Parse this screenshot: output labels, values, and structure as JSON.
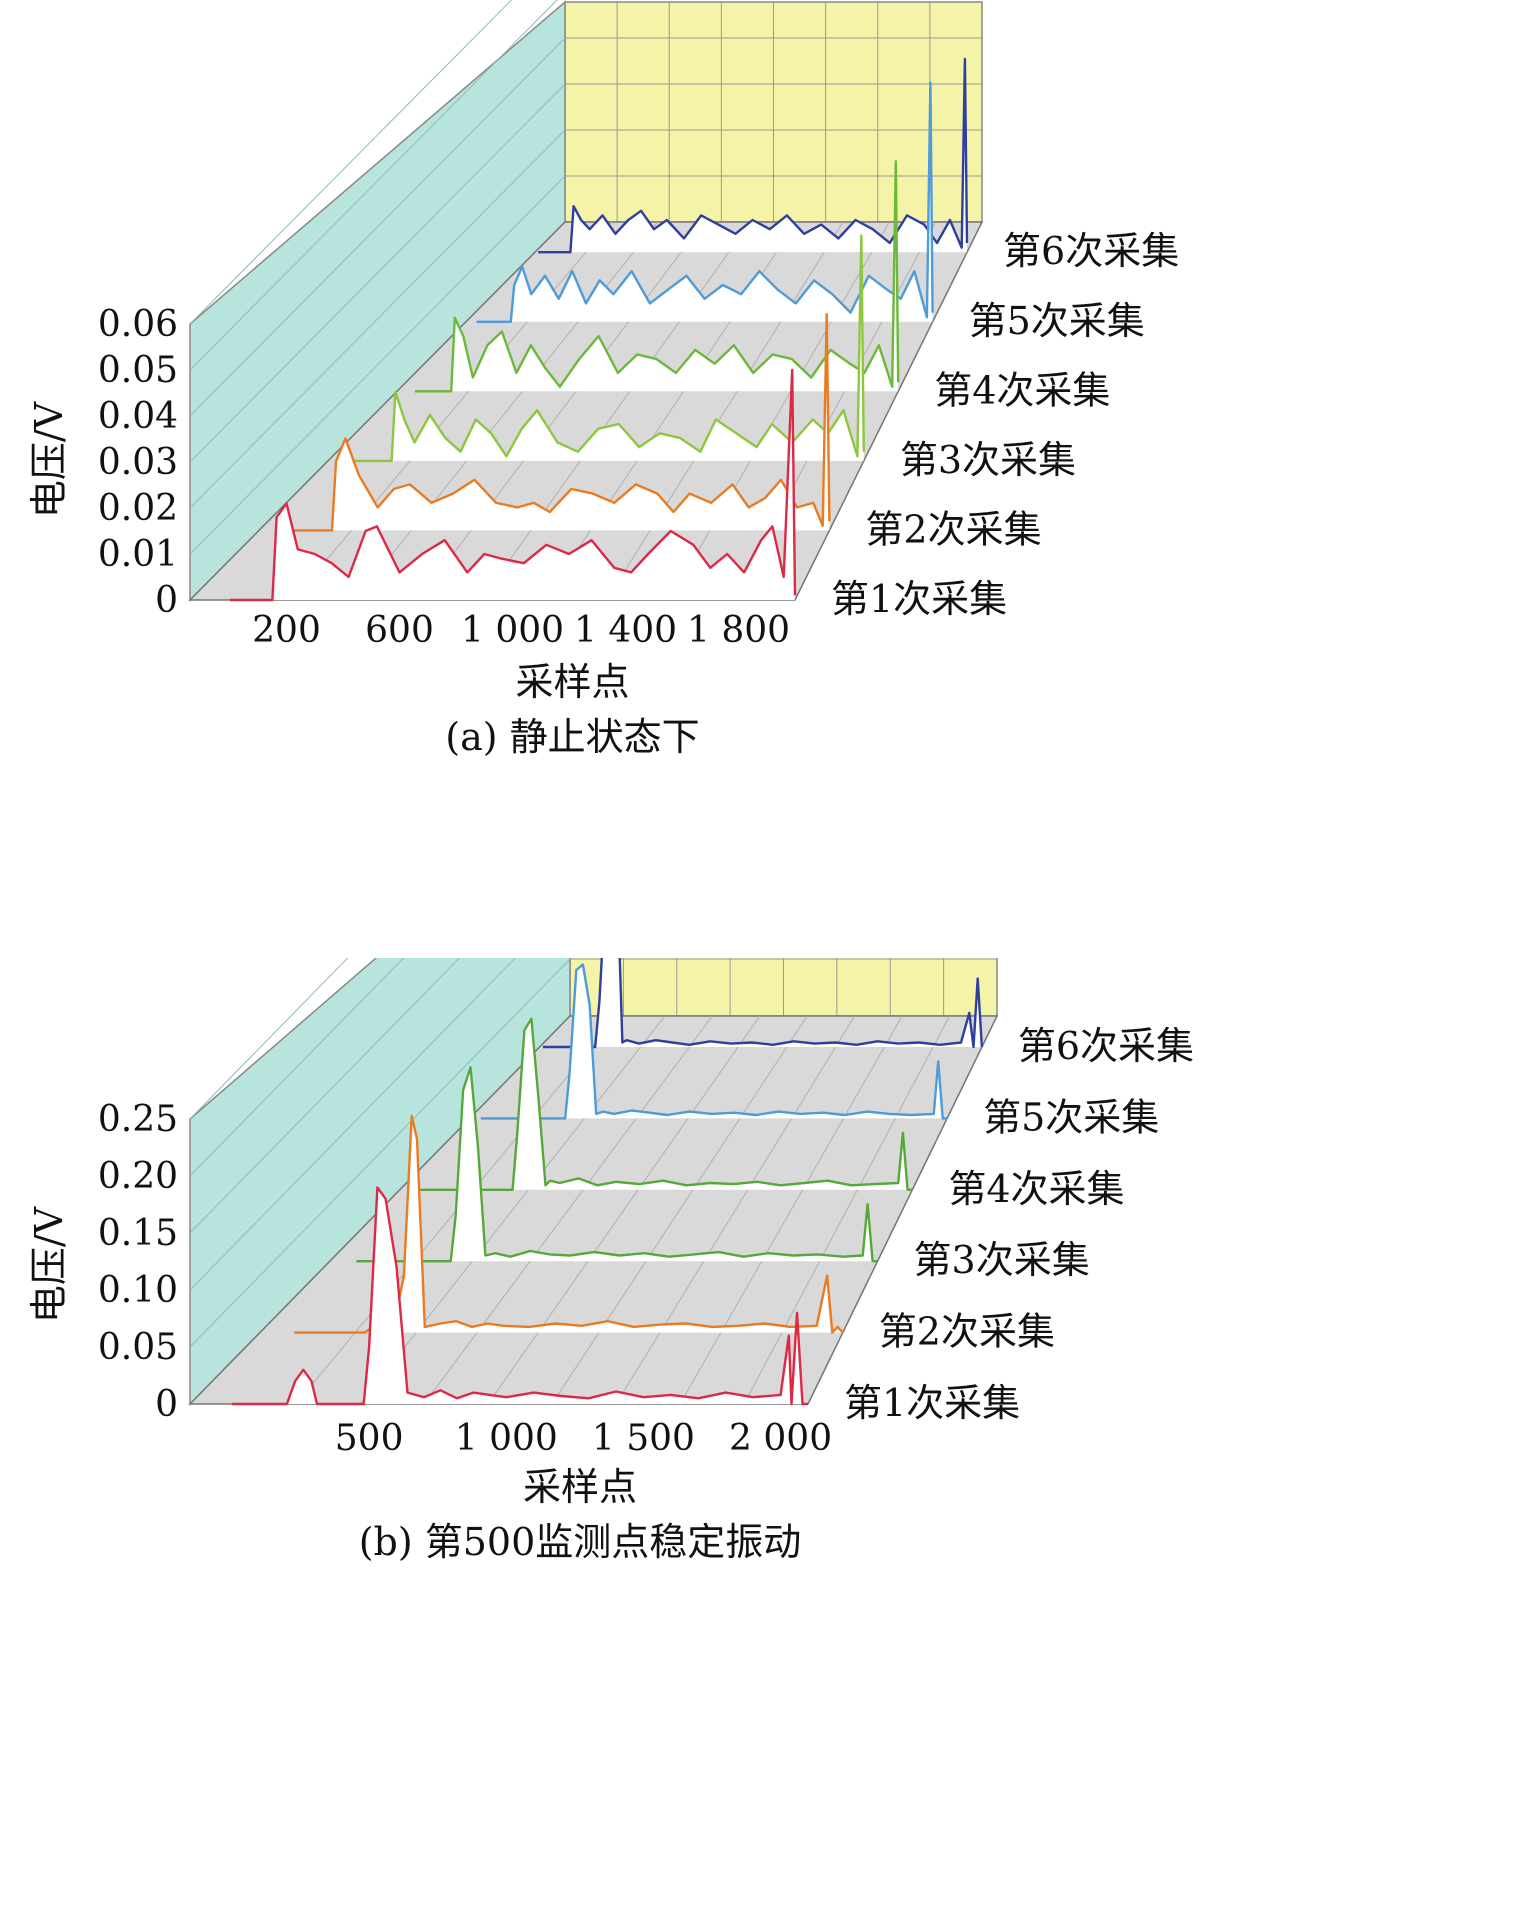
{
  "chart_data": [
    {
      "type": "line",
      "caption": "(a) 静止状态下",
      "ylabel": "电压/V",
      "xlabel": "采样点",
      "ylim": [
        0,
        0.06
      ],
      "yticks": [
        "0",
        "0.01",
        "0.02",
        "0.03",
        "0.04",
        "0.05",
        "0.06"
      ],
      "xlim": [
        0,
        2000
      ],
      "xticks": [
        {
          "value": 200,
          "label": "200"
        },
        {
          "value": 600,
          "label": "600"
        },
        {
          "value": 1000,
          "label": "1 000"
        },
        {
          "value": 1400,
          "label": "1 400"
        },
        {
          "value": 1800,
          "label": "1 800"
        }
      ],
      "series": [
        {
          "name": "第1次采集",
          "color": "#dc2945",
          "x": [
            0,
            150,
            165,
            200,
            240,
            300,
            360,
            420,
            480,
            520,
            600,
            680,
            760,
            840,
            900,
            960,
            1040,
            1120,
            1200,
            1280,
            1360,
            1420,
            1480,
            1560,
            1640,
            1700,
            1760,
            1820,
            1880,
            1920,
            1960,
            1990,
            2000
          ],
          "y": [
            0,
            0,
            0.018,
            0.021,
            0.011,
            0.01,
            0.008,
            0.005,
            0.015,
            0.016,
            0.006,
            0.01,
            0.013,
            0.006,
            0.01,
            0.009,
            0.008,
            0.012,
            0.01,
            0.013,
            0.007,
            0.006,
            0.01,
            0.015,
            0.012,
            0.007,
            0.01,
            0.006,
            0.013,
            0.016,
            0.005,
            0.05,
            0.001
          ]
        },
        {
          "name": "第2次采集",
          "color": "#ea7b22",
          "x": [
            0,
            150,
            165,
            200,
            250,
            320,
            380,
            440,
            520,
            600,
            680,
            760,
            840,
            900,
            960,
            1040,
            1120,
            1200,
            1280,
            1360,
            1420,
            1480,
            1560,
            1640,
            1700,
            1760,
            1820,
            1880,
            1940,
            1975,
            1990,
            2000
          ],
          "y": [
            0,
            0,
            0.015,
            0.02,
            0.012,
            0.005,
            0.009,
            0.01,
            0.006,
            0.008,
            0.011,
            0.006,
            0.005,
            0.006,
            0.004,
            0.009,
            0.008,
            0.006,
            0.01,
            0.008,
            0.004,
            0.008,
            0.006,
            0.01,
            0.005,
            0.007,
            0.011,
            0.005,
            0.006,
            0.001,
            0.047,
            0.002
          ]
        },
        {
          "name": "第3次采集",
          "color": "#8ec63f",
          "x": [
            0,
            150,
            165,
            200,
            240,
            300,
            360,
            420,
            480,
            540,
            600,
            660,
            720,
            800,
            880,
            960,
            1040,
            1120,
            1200,
            1280,
            1360,
            1420,
            1500,
            1580,
            1640,
            1720,
            1800,
            1860,
            1920,
            1975,
            1990,
            2000
          ],
          "y": [
            0,
            0,
            0.015,
            0.009,
            0.004,
            0.01,
            0.005,
            0.002,
            0.009,
            0.006,
            0.001,
            0.007,
            0.011,
            0.004,
            0.002,
            0.007,
            0.008,
            0.003,
            0.006,
            0.005,
            0.002,
            0.009,
            0.006,
            0.003,
            0.008,
            0.004,
            0.009,
            0.006,
            0.011,
            0.001,
            0.049,
            0.002
          ]
        },
        {
          "name": "第4次采集",
          "color": "#6ab93a",
          "x": [
            0,
            150,
            165,
            200,
            240,
            300,
            360,
            420,
            480,
            540,
            600,
            680,
            760,
            840,
            920,
            1000,
            1080,
            1160,
            1240,
            1320,
            1400,
            1480,
            1560,
            1640,
            1720,
            1800,
            1860,
            1920,
            1975,
            1990,
            2000
          ],
          "y": [
            0,
            0,
            0.016,
            0.012,
            0.003,
            0.01,
            0.013,
            0.004,
            0.01,
            0.005,
            0.001,
            0.007,
            0.012,
            0.004,
            0.008,
            0.007,
            0.004,
            0.009,
            0.006,
            0.01,
            0.004,
            0.008,
            0.007,
            0.003,
            0.009,
            0.006,
            0.004,
            0.01,
            0.001,
            0.05,
            0.002
          ]
        },
        {
          "name": "第5次采集",
          "color": "#4d9bd8",
          "x": [
            0,
            150,
            165,
            200,
            240,
            300,
            360,
            420,
            480,
            540,
            600,
            680,
            760,
            840,
            920,
            1000,
            1080,
            1160,
            1240,
            1320,
            1400,
            1480,
            1560,
            1640,
            1720,
            1800,
            1860,
            1920,
            1975,
            1990,
            2000
          ],
          "y": [
            0,
            0,
            0.008,
            0.012,
            0.006,
            0.01,
            0.005,
            0.011,
            0.004,
            0.009,
            0.006,
            0.011,
            0.004,
            0.007,
            0.01,
            0.005,
            0.008,
            0.006,
            0.011,
            0.007,
            0.004,
            0.009,
            0.006,
            0.002,
            0.01,
            0.007,
            0.005,
            0.011,
            0.001,
            0.052,
            0.002
          ]
        },
        {
          "name": "第6次采集",
          "color": "#2f3f9e",
          "x": [
            0,
            150,
            165,
            200,
            240,
            300,
            360,
            420,
            480,
            540,
            600,
            680,
            760,
            840,
            920,
            1000,
            1080,
            1160,
            1240,
            1320,
            1400,
            1480,
            1560,
            1640,
            1720,
            1800,
            1860,
            1920,
            1975,
            1990,
            2000
          ],
          "y": [
            0,
            0,
            0.01,
            0.007,
            0.005,
            0.008,
            0.004,
            0.007,
            0.009,
            0.005,
            0.007,
            0.003,
            0.008,
            0.006,
            0.004,
            0.007,
            0.005,
            0.008,
            0.004,
            0.006,
            0.003,
            0.007,
            0.005,
            0.002,
            0.008,
            0.006,
            0.002,
            0.007,
            0.001,
            0.042,
            0.002
          ]
        }
      ]
    },
    {
      "type": "line",
      "caption": "(b) 第500监测点稳定振动",
      "ylabel": "电压/V",
      "xlabel": "采样点",
      "ylim": [
        0,
        0.25
      ],
      "yticks": [
        "0",
        "0.05",
        "0.10",
        "0.15",
        "0.20",
        "0.25"
      ],
      "xlim": [
        0,
        2100
      ],
      "xticks": [
        {
          "value": 500,
          "label": "500"
        },
        {
          "value": 1000,
          "label": "1 000"
        },
        {
          "value": 1500,
          "label": "1 500"
        },
        {
          "value": 2000,
          "label": "2 000"
        }
      ],
      "series": [
        {
          "name": "第1次采集",
          "color": "#dc2945",
          "x": [
            0,
            200,
            230,
            260,
            290,
            310,
            480,
            500,
            530,
            560,
            600,
            640,
            700,
            760,
            820,
            880,
            940,
            1000,
            1100,
            1200,
            1300,
            1400,
            1500,
            1600,
            1700,
            1800,
            1900,
            2000,
            2030,
            2040,
            2060,
            2080,
            2100
          ],
          "y": [
            0,
            0,
            0.02,
            0.03,
            0.02,
            0,
            0,
            0.05,
            0.19,
            0.18,
            0.12,
            0.01,
            0.006,
            0.012,
            0.005,
            0.01,
            0.008,
            0.006,
            0.01,
            0.007,
            0.005,
            0.011,
            0.006,
            0.008,
            0.005,
            0.01,
            0.006,
            0.008,
            0.06,
            0,
            0.08,
            0,
            0
          ]
        },
        {
          "name": "第2次采集",
          "color": "#ea7b22",
          "x": [
            0,
            270,
            300,
            340,
            380,
            420,
            450,
            470,
            500,
            560,
            620,
            680,
            740,
            800,
            900,
            1000,
            1100,
            1200,
            1300,
            1400,
            1500,
            1600,
            1700,
            1800,
            1900,
            2000,
            2040,
            2060,
            2080,
            2100
          ],
          "y": [
            0,
            0,
            0.005,
            0.01,
            0.005,
            0.05,
            0.19,
            0.17,
            0.005,
            0.008,
            0.01,
            0.005,
            0.008,
            0.006,
            0.005,
            0.008,
            0.006,
            0.01,
            0.005,
            0.007,
            0.008,
            0.005,
            0.006,
            0.008,
            0.005,
            0.006,
            0.05,
            0,
            0.005,
            0
          ]
        },
        {
          "name": "第3次采集",
          "color": "#57a83a",
          "x": [
            0,
            380,
            400,
            430,
            460,
            490,
            520,
            560,
            620,
            700,
            780,
            860,
            960,
            1060,
            1160,
            1260,
            1360,
            1460,
            1560,
            1660,
            1760,
            1860,
            1960,
            2040,
            2060,
            2080,
            2100
          ],
          "y": [
            0,
            0,
            0.04,
            0.15,
            0.17,
            0.1,
            0.005,
            0.007,
            0.004,
            0.009,
            0.006,
            0.005,
            0.008,
            0.005,
            0.007,
            0.004,
            0.006,
            0.008,
            0.004,
            0.007,
            0.005,
            0.006,
            0.004,
            0.005,
            0.05,
            0,
            0
          ]
        },
        {
          "name": "第4次采集",
          "color": "#57a83a",
          "x": [
            0,
            400,
            420,
            450,
            480,
            510,
            540,
            560,
            600,
            680,
            760,
            840,
            940,
            1040,
            1140,
            1240,
            1340,
            1440,
            1540,
            1640,
            1740,
            1840,
            1940,
            2040,
            2060,
            2080,
            2100
          ],
          "y": [
            0,
            0,
            0.05,
            0.14,
            0.15,
            0.08,
            0.004,
            0.008,
            0.006,
            0.01,
            0.004,
            0.007,
            0.005,
            0.008,
            0.004,
            0.006,
            0.005,
            0.007,
            0.004,
            0.006,
            0.008,
            0.004,
            0.005,
            0.006,
            0.05,
            0,
            0
          ]
        },
        {
          "name": "第5次采集",
          "color": "#4d9bd8",
          "x": [
            0,
            380,
            400,
            430,
            460,
            490,
            520,
            550,
            600,
            680,
            760,
            840,
            940,
            1040,
            1140,
            1240,
            1340,
            1440,
            1540,
            1640,
            1740,
            1840,
            1940,
            2040,
            2060,
            2080,
            2100
          ],
          "y": [
            0,
            0,
            0.04,
            0.13,
            0.135,
            0.1,
            0.004,
            0.006,
            0.004,
            0.007,
            0.005,
            0.003,
            0.006,
            0.004,
            0.005,
            0.003,
            0.006,
            0.004,
            0.005,
            0.003,
            0.006,
            0.004,
            0.003,
            0.004,
            0.05,
            0,
            0
          ]
        },
        {
          "name": "第6次采集",
          "color": "#2f3f9e",
          "x": [
            0,
            250,
            270,
            300,
            330,
            360,
            380,
            400,
            460,
            540,
            620,
            700,
            800,
            900,
            1000,
            1100,
            1200,
            1300,
            1400,
            1500,
            1600,
            1700,
            1800,
            1900,
            2000,
            2040,
            2060,
            2080,
            2100
          ],
          "y": [
            0,
            0,
            0.04,
            0.14,
            0.15,
            0.12,
            0.004,
            0.006,
            0.003,
            0.006,
            0.004,
            0.002,
            0.005,
            0.003,
            0.004,
            0.002,
            0.005,
            0.003,
            0.004,
            0.002,
            0.005,
            0.003,
            0.004,
            0.002,
            0.004,
            0.03,
            0,
            0.06,
            0
          ]
        }
      ]
    }
  ]
}
